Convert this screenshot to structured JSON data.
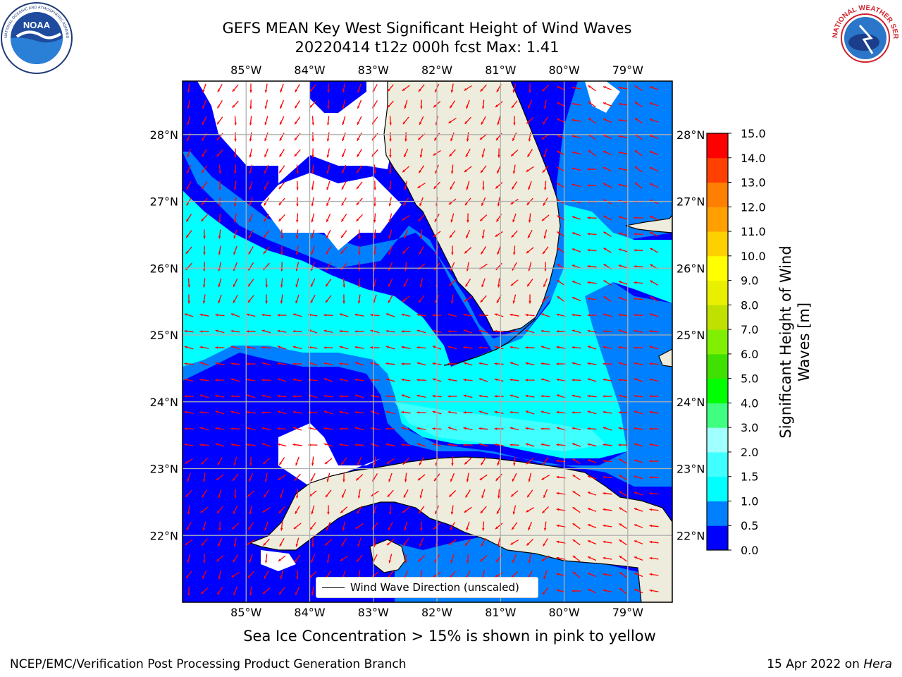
{
  "title": {
    "line1": "GEFS MEAN Key West Significant Height of Wind Waves",
    "line2": "20220414 t12z 000h fcst   Max: 1.41"
  },
  "logos": {
    "left": "NOAA",
    "right": "NATIONAL WEATHER SERVICE"
  },
  "map": {
    "lon_labels": [
      "85°W",
      "84°W",
      "83°W",
      "82°W",
      "81°W",
      "80°W",
      "79°W"
    ],
    "lat_labels": [
      "28°N",
      "27°N",
      "26°N",
      "25°N",
      "24°N",
      "23°N",
      "22°N"
    ],
    "lon_values": [
      -85,
      -84,
      -83,
      -82,
      -81,
      -80,
      -79
    ],
    "lat_values": [
      28,
      27,
      26,
      25,
      24,
      23,
      22
    ],
    "extent": {
      "lon": [
        -86.0,
        -78.3
      ],
      "lat": [
        21.0,
        28.8
      ]
    },
    "colors": {
      "land": "#eeecdc",
      "nodata": "#ffffff",
      "arrow": "#ff0000",
      "grid": "#b0b0b0"
    }
  },
  "legend": {
    "label": "Wind Wave Direction (unscaled)"
  },
  "colorbar": {
    "label": "Significant Height of Wind Waves [m]",
    "label_line1": "Significant Height of Wind",
    "label_line2": "Waves [m]",
    "ticks": [
      "0.0",
      "0.5",
      "1.0",
      "1.5",
      "2.0",
      "3.0",
      "4.0",
      "5.0",
      "6.0",
      "7.0",
      "8.0",
      "9.0",
      "10.0",
      "11.0",
      "12.0",
      "13.0",
      "14.0",
      "15.0"
    ],
    "colors": [
      "#0000ff",
      "#0080ff",
      "#00ffff",
      "#40ffff",
      "#a0ffff",
      "#40ff80",
      "#00ff00",
      "#40e000",
      "#80f000",
      "#c0e000",
      "#e8f000",
      "#ffff00",
      "#ffd000",
      "#ffa000",
      "#ff8000",
      "#ff4000",
      "#ff0000"
    ]
  },
  "note": "Sea Ice Concentration > 15% is shown in pink to yellow",
  "footer": {
    "left": "NCEP/EMC/Verification Post Processing Product Generation Branch",
    "right_prefix": "15 Apr 2022 on ",
    "right_host": "Hera"
  }
}
